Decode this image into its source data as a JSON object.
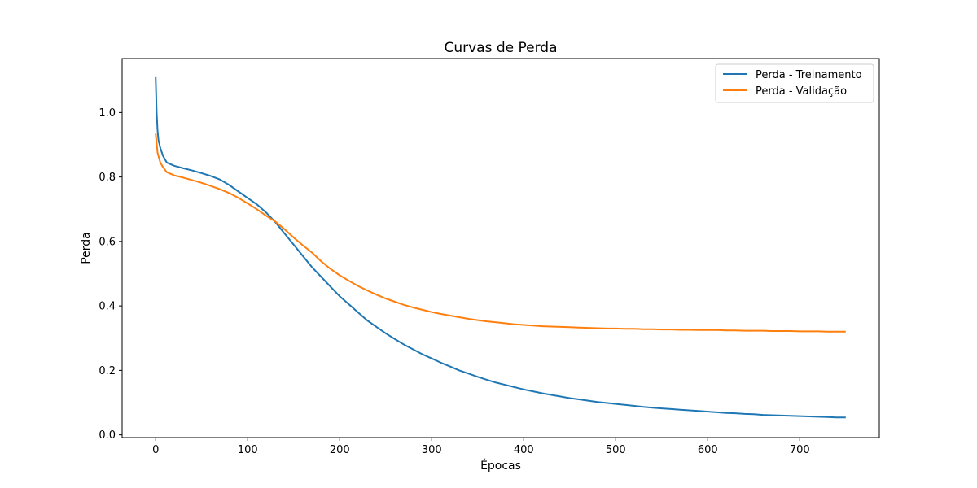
{
  "chart_data": {
    "type": "line",
    "title": "Curvas de Perda",
    "xlabel": "Épocas",
    "ylabel": "Perda",
    "xlim": [
      -36.5,
      786.5
    ],
    "ylim": [
      -0.0085,
      1.1675
    ],
    "xticks": [
      0,
      100,
      200,
      300,
      400,
      500,
      600,
      700
    ],
    "xtick_labels": [
      "0",
      "100",
      "200",
      "300",
      "400",
      "500",
      "600",
      "700"
    ],
    "yticks": [
      0.0,
      0.2,
      0.4,
      0.6,
      0.8,
      1.0
    ],
    "ytick_labels": [
      "0.0",
      "0.2",
      "0.4",
      "0.6",
      "0.8",
      "1.0"
    ],
    "grid": false,
    "legend_position": "top-right",
    "series": [
      {
        "name": "Perda - Treinamento",
        "color": "#1f77b4",
        "x": [
          0,
          1,
          2,
          3,
          5,
          8,
          12,
          20,
          30,
          40,
          50,
          60,
          70,
          80,
          90,
          100,
          110,
          120,
          130,
          140,
          150,
          160,
          170,
          180,
          190,
          200,
          210,
          220,
          230,
          240,
          250,
          260,
          270,
          280,
          290,
          300,
          310,
          320,
          330,
          340,
          350,
          360,
          370,
          380,
          390,
          400,
          410,
          420,
          430,
          440,
          450,
          460,
          470,
          480,
          490,
          500,
          510,
          520,
          530,
          540,
          550,
          560,
          570,
          580,
          590,
          600,
          610,
          620,
          630,
          640,
          650,
          660,
          670,
          680,
          690,
          700,
          710,
          720,
          730,
          740,
          750
        ],
        "y": [
          1.11,
          1.0,
          0.945,
          0.915,
          0.89,
          0.865,
          0.845,
          0.835,
          0.827,
          0.82,
          0.812,
          0.803,
          0.792,
          0.775,
          0.755,
          0.735,
          0.715,
          0.69,
          0.66,
          0.625,
          0.59,
          0.555,
          0.52,
          0.49,
          0.46,
          0.43,
          0.405,
          0.38,
          0.355,
          0.335,
          0.315,
          0.297,
          0.28,
          0.265,
          0.25,
          0.237,
          0.224,
          0.212,
          0.2,
          0.19,
          0.18,
          0.171,
          0.162,
          0.155,
          0.148,
          0.141,
          0.135,
          0.129,
          0.124,
          0.119,
          0.114,
          0.11,
          0.106,
          0.102,
          0.099,
          0.096,
          0.093,
          0.09,
          0.087,
          0.084,
          0.082,
          0.08,
          0.078,
          0.076,
          0.074,
          0.072,
          0.07,
          0.068,
          0.067,
          0.065,
          0.064,
          0.062,
          0.061,
          0.06,
          0.059,
          0.058,
          0.057,
          0.056,
          0.055,
          0.054,
          0.054
        ]
      },
      {
        "name": "Perda - Validação",
        "color": "#ff7f0e",
        "x": [
          0,
          2,
          5,
          8,
          12,
          20,
          30,
          40,
          50,
          60,
          70,
          80,
          90,
          100,
          110,
          120,
          130,
          140,
          150,
          160,
          170,
          180,
          190,
          200,
          210,
          220,
          230,
          240,
          250,
          260,
          270,
          280,
          290,
          300,
          310,
          320,
          330,
          340,
          350,
          360,
          370,
          380,
          390,
          400,
          410,
          420,
          430,
          440,
          450,
          460,
          470,
          480,
          490,
          500,
          510,
          520,
          530,
          540,
          550,
          560,
          570,
          580,
          590,
          600,
          610,
          620,
          630,
          640,
          650,
          660,
          670,
          680,
          690,
          700,
          710,
          720,
          730,
          740,
          750
        ],
        "y": [
          0.935,
          0.875,
          0.845,
          0.83,
          0.815,
          0.805,
          0.798,
          0.79,
          0.782,
          0.772,
          0.762,
          0.75,
          0.735,
          0.718,
          0.7,
          0.68,
          0.662,
          0.638,
          0.612,
          0.588,
          0.565,
          0.538,
          0.515,
          0.495,
          0.478,
          0.462,
          0.448,
          0.435,
          0.423,
          0.413,
          0.403,
          0.395,
          0.388,
          0.381,
          0.375,
          0.37,
          0.365,
          0.36,
          0.356,
          0.352,
          0.349,
          0.346,
          0.343,
          0.341,
          0.339,
          0.337,
          0.336,
          0.335,
          0.334,
          0.333,
          0.332,
          0.331,
          0.33,
          0.33,
          0.329,
          0.329,
          0.328,
          0.328,
          0.327,
          0.327,
          0.326,
          0.326,
          0.325,
          0.325,
          0.325,
          0.324,
          0.324,
          0.323,
          0.323,
          0.323,
          0.322,
          0.322,
          0.322,
          0.321,
          0.321,
          0.321,
          0.32,
          0.32,
          0.32
        ]
      }
    ]
  }
}
